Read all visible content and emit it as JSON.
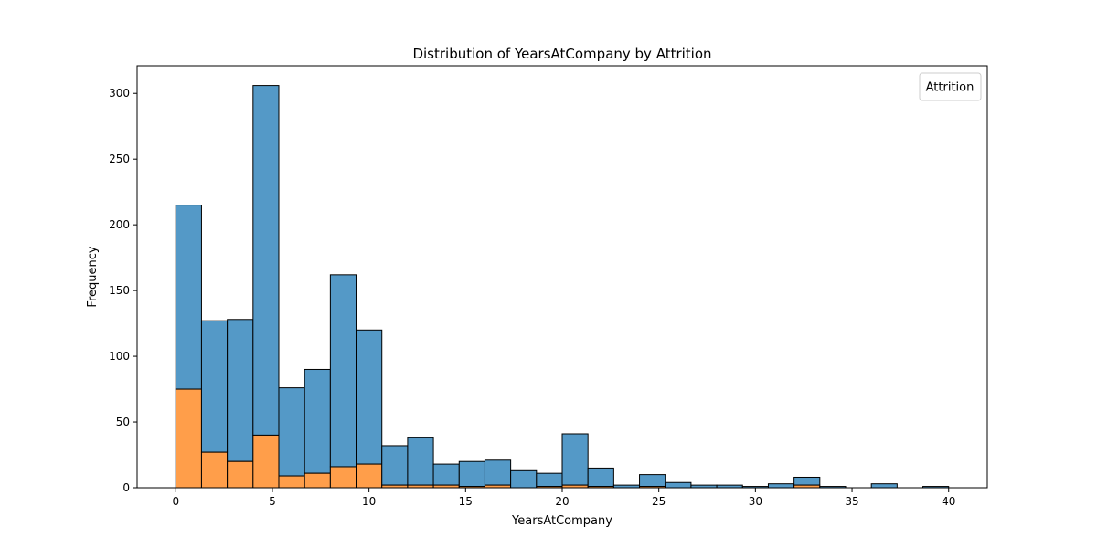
{
  "chart_data": {
    "type": "bar",
    "stacked": true,
    "title": "Distribution of YearsAtCompany by Attrition",
    "xlabel": "YearsAtCompany",
    "ylabel": "Frequency",
    "xlim": [
      -2,
      42
    ],
    "ylim": [
      0,
      321
    ],
    "xticks": [
      0,
      5,
      10,
      15,
      20,
      25,
      30,
      35,
      40
    ],
    "yticks": [
      0,
      50,
      100,
      150,
      200,
      250,
      300
    ],
    "bin_edges": [
      0,
      1.333,
      2.667,
      4,
      5.333,
      6.667,
      8,
      9.333,
      10.667,
      12,
      13.333,
      14.667,
      16,
      17.333,
      18.667,
      20,
      21.333,
      22.667,
      24,
      25.333,
      26.667,
      28,
      29.333,
      30.667,
      32,
      33.333,
      34.667,
      36,
      37.333,
      38.667,
      40
    ],
    "series": [
      {
        "values": [
          140,
          100,
          108,
          266,
          67,
          79,
          146,
          102,
          30,
          36,
          16,
          19,
          19,
          13,
          10,
          39,
          14,
          2,
          9,
          4,
          2,
          2,
          1,
          3,
          6,
          1,
          0,
          3,
          0,
          1
        ],
        "color": "#5499c7"
      },
      {
        "values": [
          75,
          27,
          20,
          40,
          9,
          11,
          16,
          18,
          2,
          2,
          2,
          1,
          2,
          0,
          1,
          2,
          1,
          0,
          1,
          0,
          0,
          0,
          0,
          0,
          2,
          0,
          0,
          0,
          0,
          0
        ],
        "color": "#ff9e4a"
      }
    ],
    "legend": {
      "title": "Attrition",
      "position": "top-right"
    },
    "grid": false
  }
}
